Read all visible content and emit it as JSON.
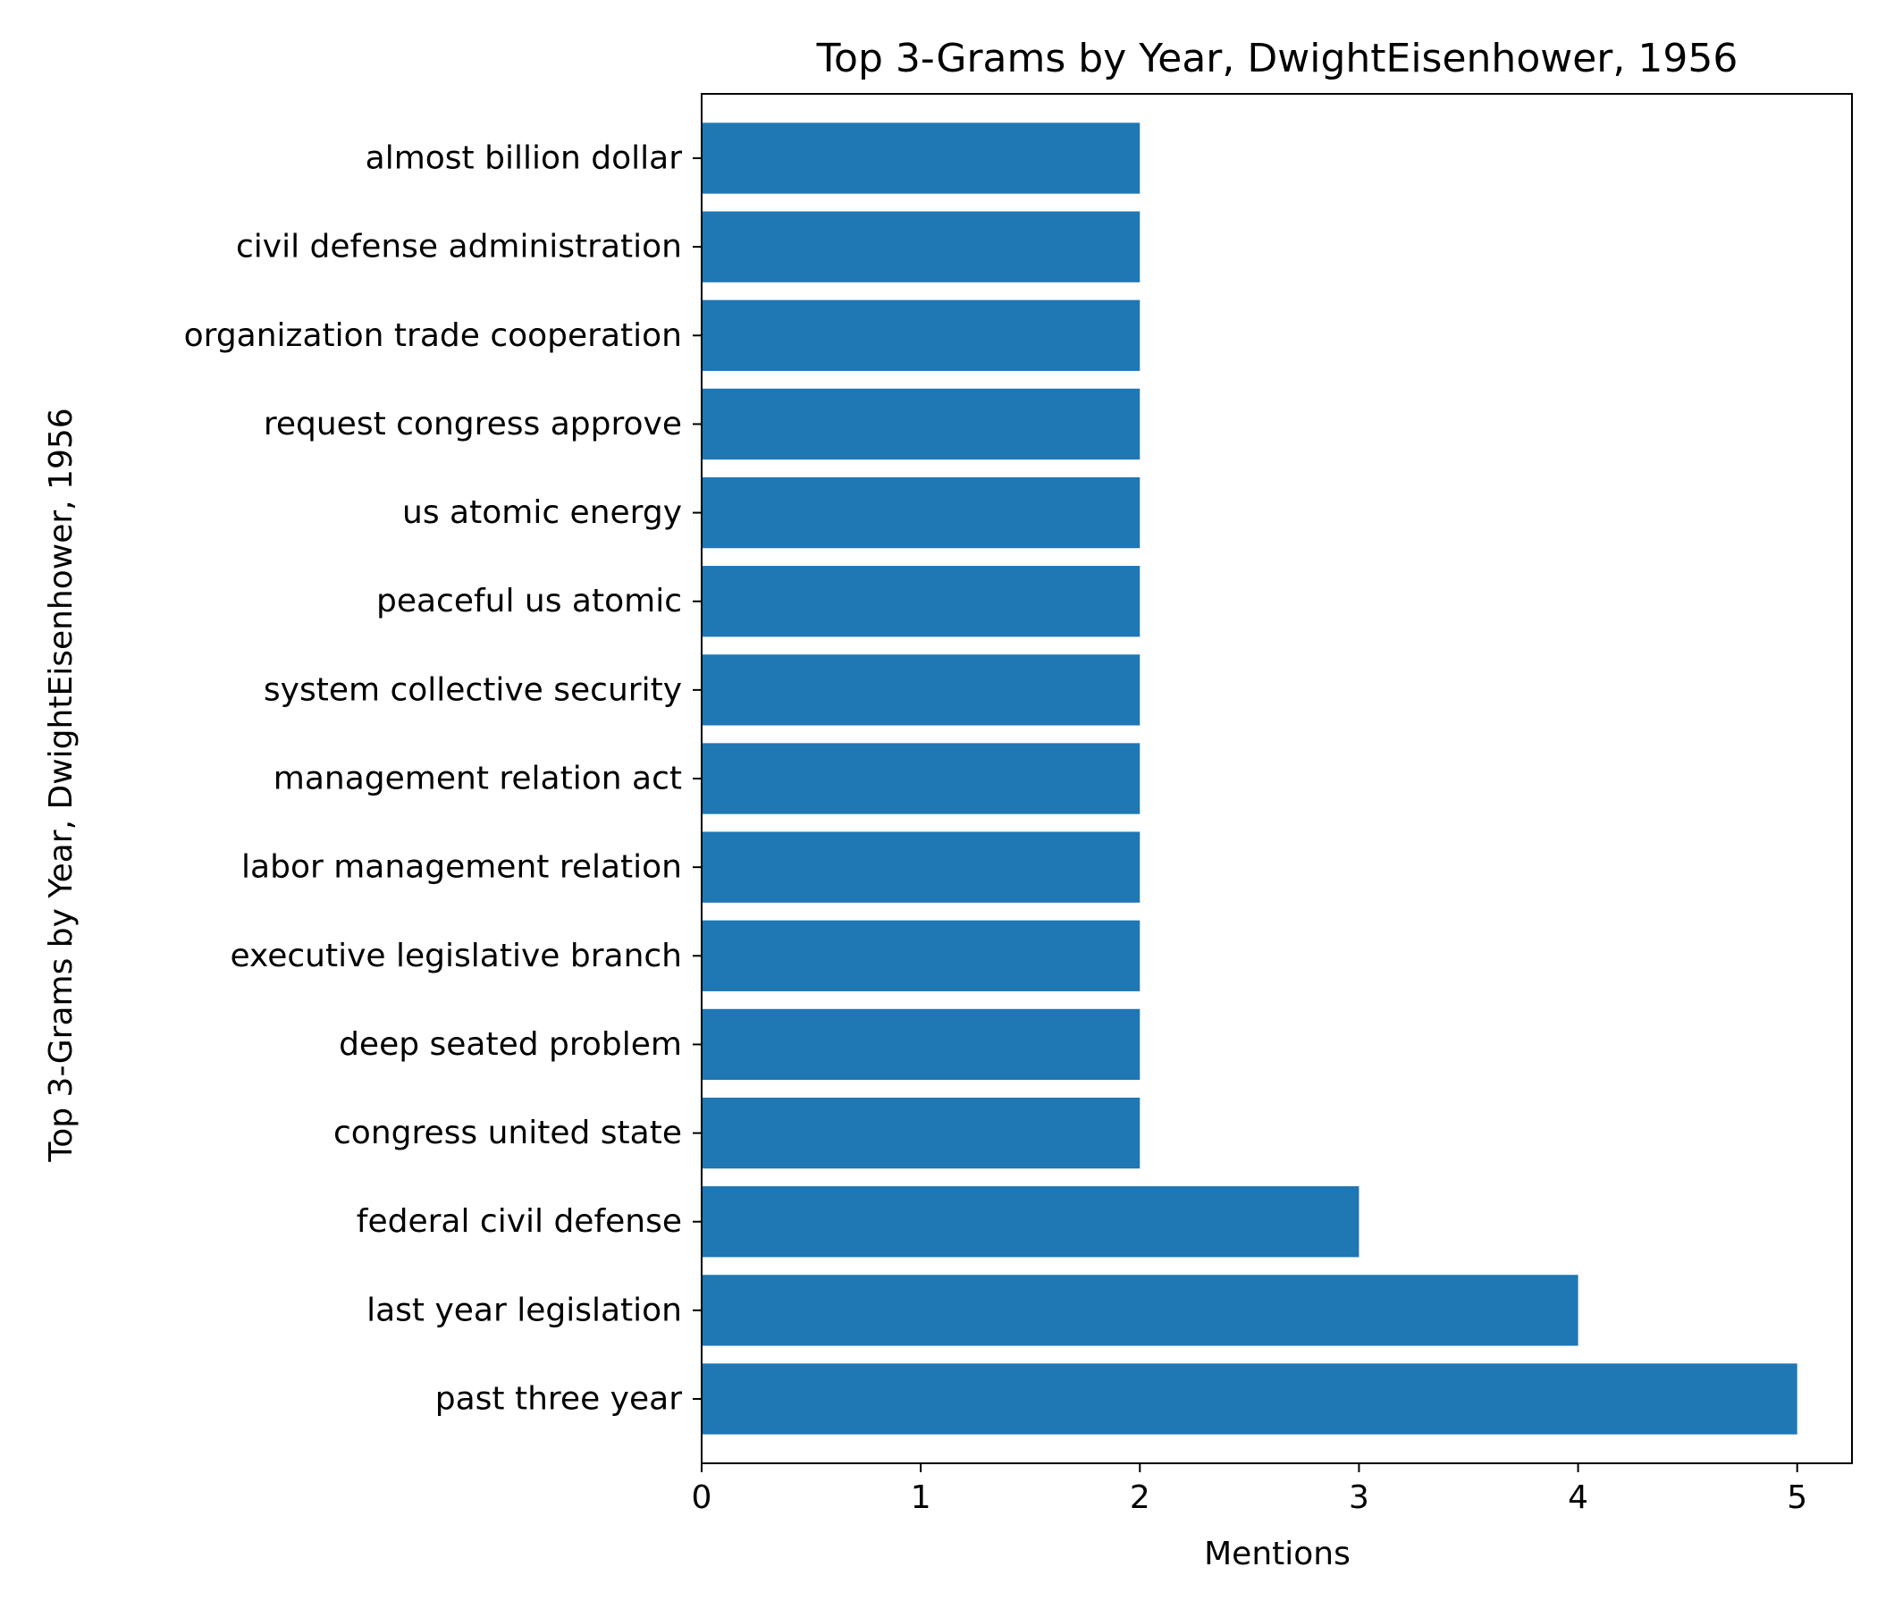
{
  "chart_data": {
    "type": "bar",
    "orientation": "horizontal",
    "title": "Top 3-Grams by Year, DwightEisenhower, 1956",
    "xlabel": "Mentions",
    "ylabel": "Top 3-Grams by Year, DwightEisenhower, 1956",
    "categories": [
      "past three year",
      "last year legislation",
      "federal civil defense",
      "congress united state",
      "deep seated problem",
      "executive legislative branch",
      "labor management relation",
      "management relation act",
      "system collective security",
      "peaceful us atomic",
      "us atomic energy",
      "request congress approve",
      "organization trade cooperation",
      "civil defense administration",
      "almost billion dollar"
    ],
    "values": [
      5,
      4,
      3,
      2,
      2,
      2,
      2,
      2,
      2,
      2,
      2,
      2,
      2,
      2,
      2
    ],
    "xlim": [
      0,
      5.25
    ],
    "xticks": [
      0,
      1,
      2,
      3,
      4,
      5
    ],
    "bar_color": "#1f77b4",
    "grid": false,
    "legend": "none"
  }
}
